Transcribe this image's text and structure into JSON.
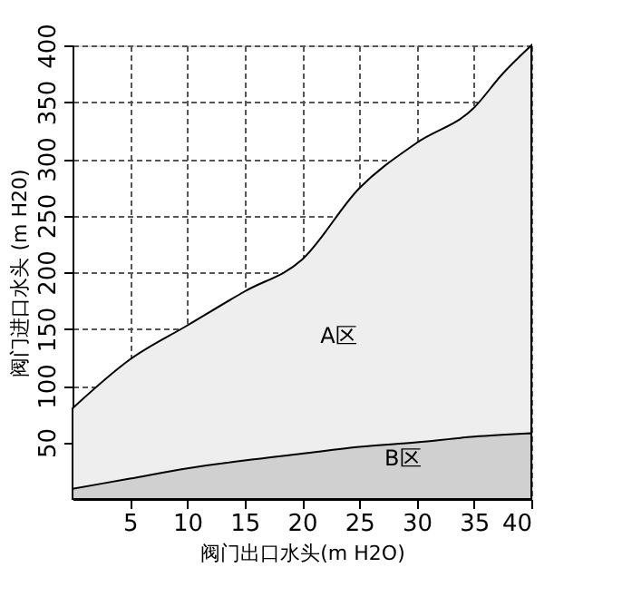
{
  "chart_data": {
    "type": "area",
    "xlabel": "阀门出口水头(m H2O)",
    "ylabel": "阀门进口水头 (m H20)",
    "x": [
      0,
      5,
      10,
      15,
      20,
      25,
      30,
      35,
      40
    ],
    "series": [
      {
        "color": "#eeeeee",
        "x": [
          0,
          5,
          10,
          15,
          20,
          25,
          30,
          35,
          37.5,
          40
        ],
        "values": [
          80,
          123,
          153,
          183,
          211,
          274,
          314,
          345,
          375,
          400
        ]
      },
      {
        "color": "#d0d0d0",
        "values": [
          9,
          18,
          27,
          34,
          40,
          46,
          50,
          55,
          58
        ]
      }
    ],
    "annotations": [
      "A区",
      "B区"
    ],
    "xlim": [
      0,
      40
    ],
    "ylim": [
      0,
      400
    ],
    "xticks": [
      5,
      10,
      15,
      20,
      25,
      30,
      35,
      40
    ],
    "yticks": [
      50,
      100,
      150,
      200,
      250,
      300,
      350,
      400
    ],
    "grid": true,
    "line_style": "dashed"
  }
}
